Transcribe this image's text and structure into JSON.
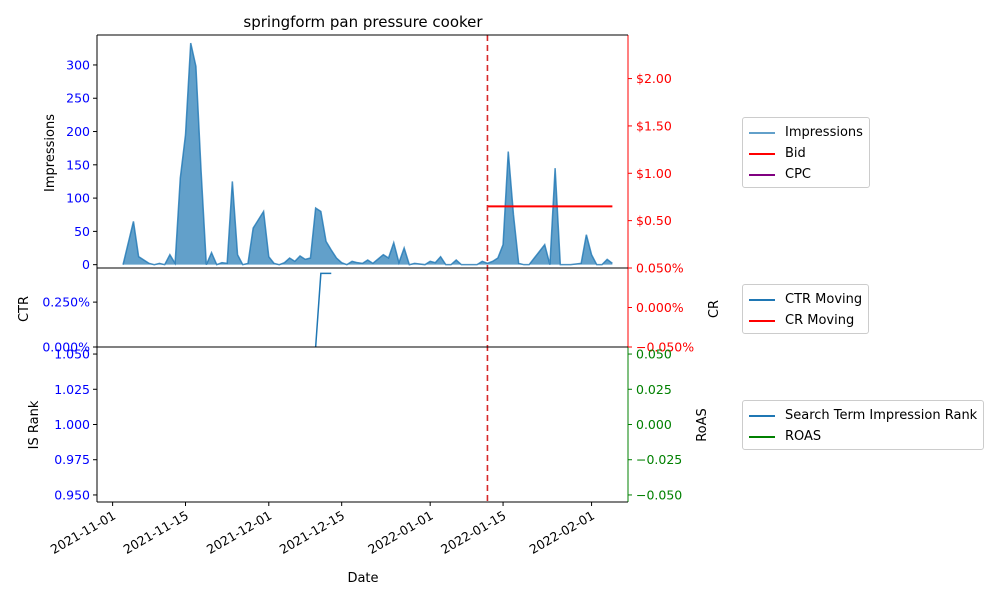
{
  "chart_data": {
    "type": "area",
    "title": "springform pan pressure cooker",
    "xlabel": "Date",
    "x_ticks": [
      "2021-11-01",
      "2021-11-15",
      "2021-12-01",
      "2021-12-15",
      "2022-01-01",
      "2022-01-15",
      "2022-02-01"
    ],
    "vline_date": "2022-01-12",
    "colors": {
      "impressions": "#1f77b4",
      "bid": "#ff0000",
      "cpc": "#800080",
      "ctr": "#1f77b4",
      "cr": "#ff0000",
      "rank": "#1f77b4",
      "roas": "#008000",
      "left_tick": "#0000ff",
      "vline": "#d62728"
    },
    "panels": {
      "top": {
        "ylabel": "Impressions",
        "ylim": [
          -5,
          345
        ],
        "y_ticks": [
          "0",
          "50",
          "100",
          "150",
          "200",
          "250",
          "300"
        ],
        "right_ylim": [
          0,
          2.46
        ],
        "right_ticks": [
          {
            "v": 0.5,
            "label": "$0.50"
          },
          {
            "v": 1.0,
            "label": "$1.00"
          },
          {
            "v": 1.5,
            "label": "$1.50"
          },
          {
            "v": 2.0,
            "label": "$2.00"
          }
        ],
        "legend": [
          "Impressions",
          "Bid",
          "CPC"
        ]
      },
      "middle": {
        "ylabel": "CTR",
        "right_ylabel": "CR",
        "ylim": [
          0,
          0.0044
        ],
        "y_ticks": [
          {
            "v": 0.0,
            "label": "0.000%"
          },
          {
            "v": 0.0025,
            "label": "0.250%"
          }
        ],
        "right_ylim": [
          -0.0005,
          0.0005
        ],
        "right_ticks": [
          {
            "v": 0.0005,
            "label": "0.050%"
          },
          {
            "v": 0.0,
            "label": "0.000%"
          },
          {
            "v": -0.0005,
            "label": "−0.050%"
          }
        ],
        "legend": [
          "CTR Moving",
          "CR Moving"
        ]
      },
      "bottom": {
        "ylabel": "IS Rank",
        "right_ylabel": "RoAS",
        "ylim": [
          0.945,
          1.055
        ],
        "y_ticks": [
          {
            "v": 0.95,
            "label": "0.950"
          },
          {
            "v": 0.975,
            "label": "0.975"
          },
          {
            "v": 1.0,
            "label": "1.000"
          },
          {
            "v": 1.025,
            "label": "1.025"
          },
          {
            "v": 1.05,
            "label": "1.050"
          }
        ],
        "right_ylim": [
          -0.055,
          0.055
        ],
        "right_ticks": [
          {
            "v": 0.05,
            "label": "0.050"
          },
          {
            "v": 0.025,
            "label": "0.025"
          },
          {
            "v": 0.0,
            "label": "0.000"
          },
          {
            "v": -0.025,
            "label": "−0.025"
          },
          {
            "v": -0.05,
            "label": "−0.050"
          }
        ],
        "legend": [
          "Search Term Impression Rank",
          "ROAS"
        ]
      }
    },
    "impressions": [
      [
        "2021-11-03",
        0
      ],
      [
        "2021-11-05",
        65
      ],
      [
        "2021-11-06",
        12
      ],
      [
        "2021-11-08",
        2
      ],
      [
        "2021-11-09",
        0
      ],
      [
        "2021-11-10",
        2
      ],
      [
        "2021-11-11",
        0
      ],
      [
        "2021-11-12",
        15
      ],
      [
        "2021-11-13",
        2
      ],
      [
        "2021-11-14",
        130
      ],
      [
        "2021-11-15",
        195
      ],
      [
        "2021-11-16",
        333
      ],
      [
        "2021-11-17",
        298
      ],
      [
        "2021-11-18",
        140
      ],
      [
        "2021-11-19",
        0
      ],
      [
        "2021-11-20",
        18
      ],
      [
        "2021-11-21",
        0
      ],
      [
        "2021-11-22",
        3
      ],
      [
        "2021-11-23",
        2
      ],
      [
        "2021-11-24",
        125
      ],
      [
        "2021-11-25",
        15
      ],
      [
        "2021-11-26",
        0
      ],
      [
        "2021-11-27",
        2
      ],
      [
        "2021-11-28",
        55
      ],
      [
        "2021-11-30",
        80
      ],
      [
        "2021-12-01",
        12
      ],
      [
        "2021-12-02",
        2
      ],
      [
        "2021-12-03",
        0
      ],
      [
        "2021-12-04",
        3
      ],
      [
        "2021-12-05",
        10
      ],
      [
        "2021-12-06",
        5
      ],
      [
        "2021-12-07",
        13
      ],
      [
        "2021-12-08",
        8
      ],
      [
        "2021-12-09",
        10
      ],
      [
        "2021-12-10",
        85
      ],
      [
        "2021-12-11",
        80
      ],
      [
        "2021-12-12",
        35
      ],
      [
        "2021-12-13",
        22
      ],
      [
        "2021-12-14",
        10
      ],
      [
        "2021-12-15",
        3
      ],
      [
        "2021-12-16",
        0
      ],
      [
        "2021-12-17",
        5
      ],
      [
        "2021-12-18",
        3
      ],
      [
        "2021-12-19",
        2
      ],
      [
        "2021-12-20",
        7
      ],
      [
        "2021-12-21",
        2
      ],
      [
        "2021-12-23",
        15
      ],
      [
        "2021-12-24",
        10
      ],
      [
        "2021-12-25",
        33
      ],
      [
        "2021-12-26",
        3
      ],
      [
        "2021-12-27",
        25
      ],
      [
        "2021-12-28",
        0
      ],
      [
        "2021-12-29",
        2
      ],
      [
        "2021-12-31",
        0
      ],
      [
        "2022-01-01",
        5
      ],
      [
        "2022-01-02",
        3
      ],
      [
        "2022-01-03",
        12
      ],
      [
        "2022-01-04",
        0
      ],
      [
        "2022-01-05",
        0
      ],
      [
        "2022-01-06",
        7
      ],
      [
        "2022-01-07",
        0
      ],
      [
        "2022-01-08",
        0
      ],
      [
        "2022-01-09",
        0
      ],
      [
        "2022-01-10",
        0
      ],
      [
        "2022-01-11",
        5
      ],
      [
        "2022-01-12",
        2
      ],
      [
        "2022-01-13",
        5
      ],
      [
        "2022-01-14",
        10
      ],
      [
        "2022-01-15",
        30
      ],
      [
        "2022-01-16",
        170
      ],
      [
        "2022-01-17",
        75
      ],
      [
        "2022-01-18",
        2
      ],
      [
        "2022-01-19",
        0
      ],
      [
        "2022-01-20",
        0
      ],
      [
        "2022-01-21",
        10
      ],
      [
        "2022-01-22",
        20
      ],
      [
        "2022-01-23",
        30
      ],
      [
        "2022-01-24",
        0
      ],
      [
        "2022-01-25",
        145
      ],
      [
        "2022-01-26",
        0
      ],
      [
        "2022-01-28",
        0
      ],
      [
        "2022-01-30",
        2
      ],
      [
        "2022-01-31",
        45
      ],
      [
        "2022-02-01",
        15
      ],
      [
        "2022-02-02",
        0
      ],
      [
        "2022-02-03",
        0
      ],
      [
        "2022-02-04",
        8
      ],
      [
        "2022-02-05",
        2
      ]
    ],
    "bid": [
      [
        "2022-01-12",
        0.65
      ],
      [
        "2022-02-05",
        0.65
      ]
    ],
    "cpc": [],
    "ctr_moving": [
      [
        "2021-12-10",
        0.0
      ],
      [
        "2021-12-11",
        0.0041
      ],
      [
        "2021-12-13",
        0.0041
      ]
    ],
    "cr_moving": [],
    "is_rank": [],
    "roas": []
  }
}
